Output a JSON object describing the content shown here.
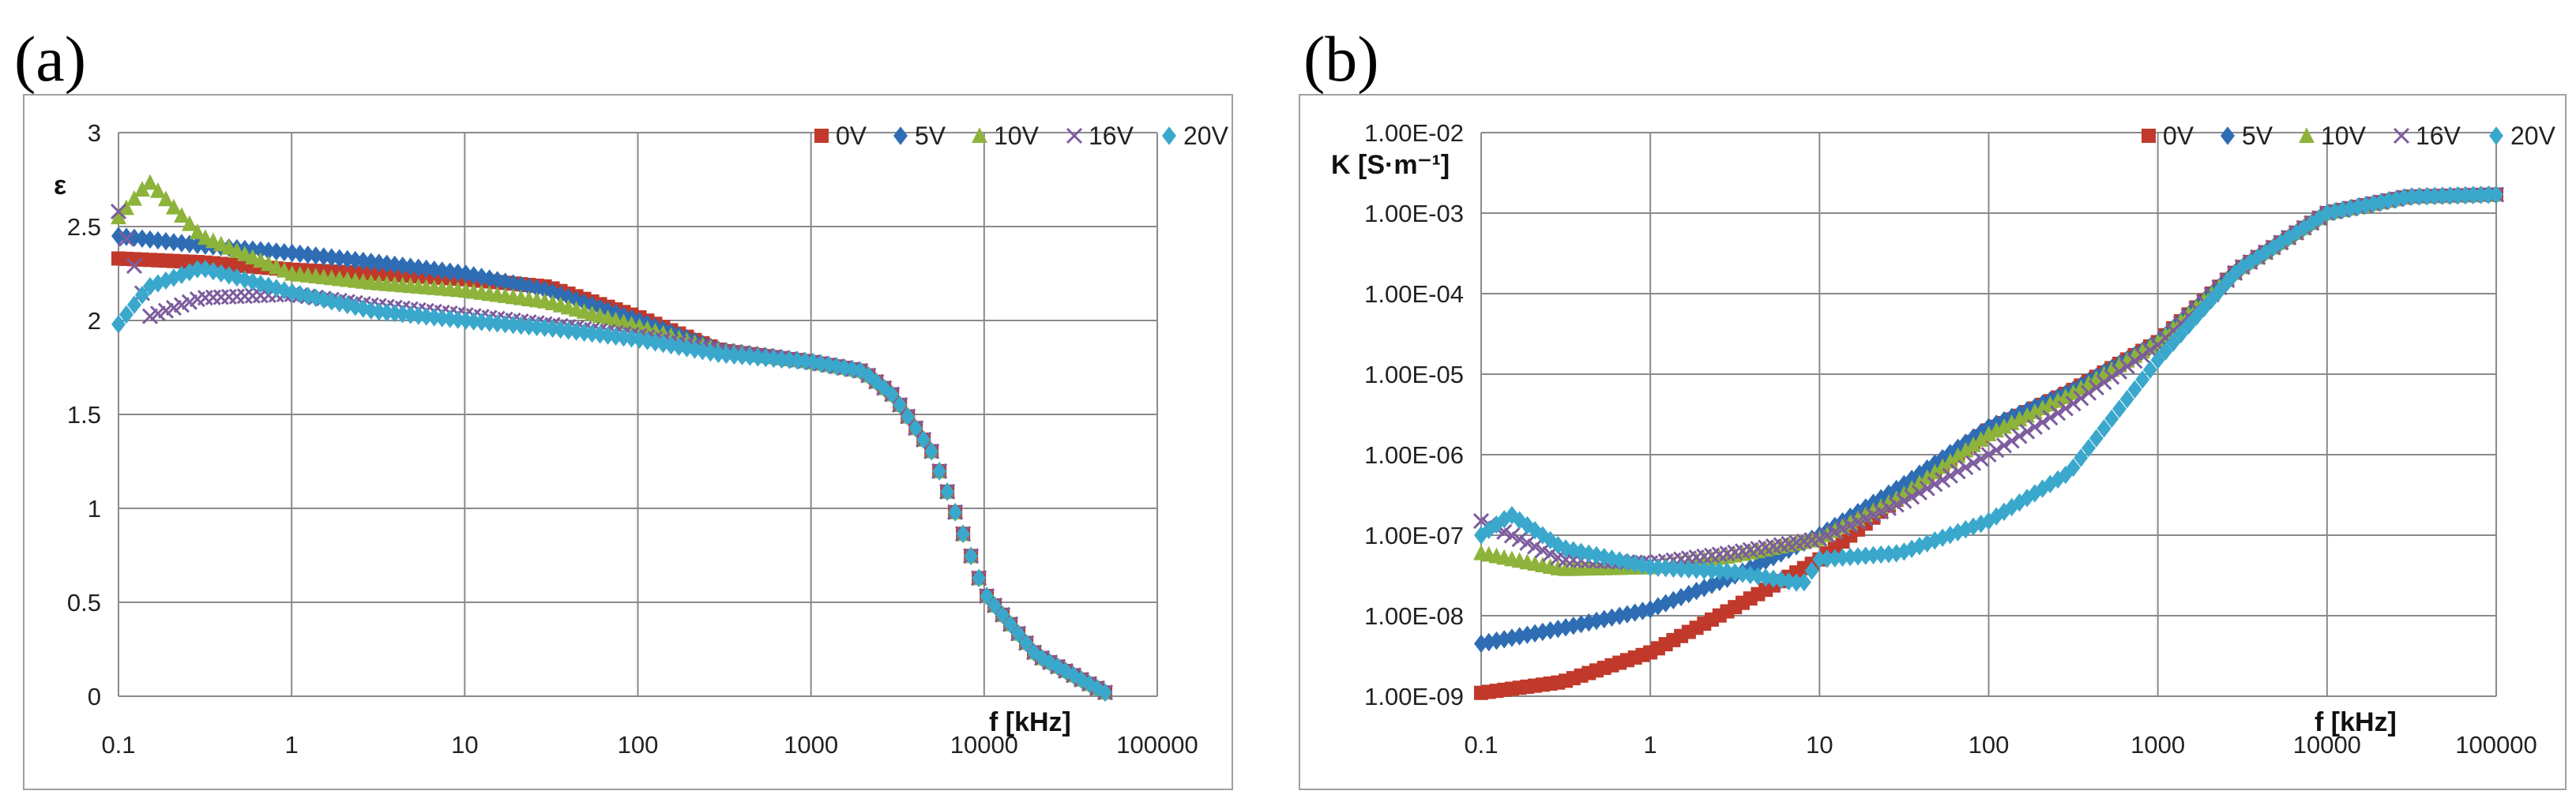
{
  "panels": {
    "a_label": "(a)",
    "b_label": "(b)"
  },
  "chart_data": [
    {
      "id": "a",
      "type": "scatter",
      "xscale": "log",
      "xlim": [
        0.1,
        100000
      ],
      "ylim": [
        0,
        3
      ],
      "xticks": [
        "0.1",
        "1",
        "10",
        "100",
        "1000",
        "10000",
        "100000"
      ],
      "yticks": [
        "0",
        "0.5",
        "1",
        "1.5",
        "2",
        "2.5",
        "3"
      ],
      "ylabel": "ε",
      "xlabel": "f [kHz]",
      "legend_position": "top-right",
      "grid": true,
      "series": [
        {
          "name": "0V",
          "color": "#c0392b",
          "marker": "square",
          "x": [
            0.1,
            0.3,
            1,
            3,
            10,
            30,
            100,
            300,
            1000,
            2000,
            3000,
            5000,
            7000,
            10000,
            20000,
            50000
          ],
          "y": [
            2.33,
            2.31,
            2.27,
            2.25,
            2.22,
            2.18,
            2.02,
            1.84,
            1.78,
            1.73,
            1.6,
            1.3,
            0.95,
            0.55,
            0.22,
            0.02
          ]
        },
        {
          "name": "5V",
          "color": "#2e6db4",
          "marker": "diamond",
          "x": [
            0.1,
            0.3,
            1,
            3,
            10,
            30,
            100,
            300,
            1000,
            2000,
            3000,
            5000,
            7000,
            10000,
            20000,
            50000
          ],
          "y": [
            2.45,
            2.4,
            2.36,
            2.31,
            2.25,
            2.16,
            2.0,
            1.84,
            1.78,
            1.73,
            1.6,
            1.3,
            0.95,
            0.55,
            0.22,
            0.02
          ]
        },
        {
          "name": "10V",
          "color": "#8db33a",
          "marker": "triangle",
          "x": [
            0.1,
            0.15,
            0.3,
            1,
            3,
            10,
            30,
            100,
            300,
            1000,
            2000,
            3000,
            5000,
            7000,
            10000,
            20000,
            50000
          ],
          "y": [
            2.55,
            2.74,
            2.45,
            2.25,
            2.2,
            2.16,
            2.1,
            1.97,
            1.84,
            1.78,
            1.73,
            1.6,
            1.3,
            0.95,
            0.55,
            0.22,
            0.02
          ]
        },
        {
          "name": "16V",
          "color": "#7d5c9e",
          "marker": "cross",
          "x": [
            0.1,
            0.15,
            0.3,
            1,
            3,
            10,
            30,
            100,
            300,
            1000,
            2000,
            3000,
            5000,
            7000,
            10000,
            20000,
            50000
          ],
          "y": [
            2.58,
            2.02,
            2.12,
            2.14,
            2.08,
            2.03,
            1.98,
            1.92,
            1.84,
            1.78,
            1.73,
            1.6,
            1.3,
            0.95,
            0.55,
            0.22,
            0.02
          ]
        },
        {
          "name": "20V",
          "color": "#3aa8cc",
          "marker": "diamond",
          "x": [
            0.1,
            0.15,
            0.3,
            1,
            3,
            10,
            30,
            100,
            300,
            1000,
            2000,
            3000,
            5000,
            7000,
            10000,
            20000,
            50000
          ],
          "y": [
            1.98,
            2.18,
            2.28,
            2.15,
            2.05,
            2.0,
            1.96,
            1.9,
            1.82,
            1.78,
            1.73,
            1.6,
            1.3,
            0.95,
            0.55,
            0.22,
            0.02
          ]
        }
      ]
    },
    {
      "id": "b",
      "type": "scatter",
      "xscale": "log",
      "yscale": "log",
      "xlim": [
        0.1,
        100000
      ],
      "ylim": [
        1e-09,
        0.01
      ],
      "xticks": [
        "0.1",
        "1",
        "10",
        "100",
        "1000",
        "10000",
        "100000"
      ],
      "yticks": [
        "1.00E-09",
        "1.00E-08",
        "1.00E-07",
        "1.00E-06",
        "1.00E-05",
        "1.00E-04",
        "1.00E-03",
        "1.00E-02"
      ],
      "ylabel": "K [S·m⁻¹]",
      "xlabel": "f [kHz]",
      "legend_position": "top-right",
      "grid": true,
      "series": [
        {
          "name": "0V",
          "color": "#c0392b",
          "marker": "square",
          "x": [
            0.1,
            0.3,
            1,
            3,
            10,
            30,
            100,
            300,
            1000,
            3000,
            10000,
            30000,
            100000
          ],
          "y": [
            1.1e-09,
            1.5e-09,
            3.5e-09,
            1.2e-08,
            5e-08,
            3e-07,
            2e-06,
            6e-06,
            2.5e-05,
            0.0002,
            0.001,
            0.0016,
            0.0017
          ]
        },
        {
          "name": "5V",
          "color": "#2e6db4",
          "marker": "diamond",
          "x": [
            0.1,
            0.3,
            1,
            3,
            10,
            30,
            100,
            300,
            1000,
            3000,
            10000,
            30000,
            100000
          ],
          "y": [
            4.5e-09,
            7e-09,
            1.2e-08,
            3e-08,
            1e-07,
            4e-07,
            2.2e-06,
            6e-06,
            2.5e-05,
            0.0002,
            0.001,
            0.0016,
            0.0017
          ]
        },
        {
          "name": "10V",
          "color": "#8db33a",
          "marker": "triangle",
          "x": [
            0.1,
            0.3,
            1,
            3,
            10,
            30,
            100,
            300,
            1000,
            3000,
            10000,
            30000,
            100000
          ],
          "y": [
            6e-08,
            3.8e-08,
            4e-08,
            5.5e-08,
            9e-08,
            3e-07,
            1.8e-06,
            5.5e-06,
            2.5e-05,
            0.0002,
            0.001,
            0.0016,
            0.0017
          ]
        },
        {
          "name": "16V",
          "color": "#7d5c9e",
          "marker": "cross",
          "x": [
            0.1,
            0.3,
            1,
            3,
            10,
            30,
            100,
            300,
            1000,
            3000,
            10000,
            30000,
            100000
          ],
          "y": [
            1.5e-07,
            5e-08,
            4.5e-08,
            6e-08,
            9e-08,
            2.5e-07,
            1e-06,
            4e-06,
            2.3e-05,
            0.0002,
            0.001,
            0.0016,
            0.0017
          ]
        },
        {
          "name": "20V",
          "color": "#3aa8cc",
          "marker": "diamond",
          "x": [
            0.1,
            0.15,
            0.3,
            1,
            3,
            8,
            10,
            30,
            100,
            300,
            1000,
            3000,
            10000,
            30000,
            100000
          ],
          "y": [
            1e-07,
            1.8e-07,
            7e-08,
            4e-08,
            3.5e-08,
            2.5e-08,
            5e-08,
            6e-08,
            1.5e-07,
            6e-07,
            1.5e-05,
            0.0002,
            0.001,
            0.0016,
            0.0017
          ]
        }
      ]
    }
  ]
}
